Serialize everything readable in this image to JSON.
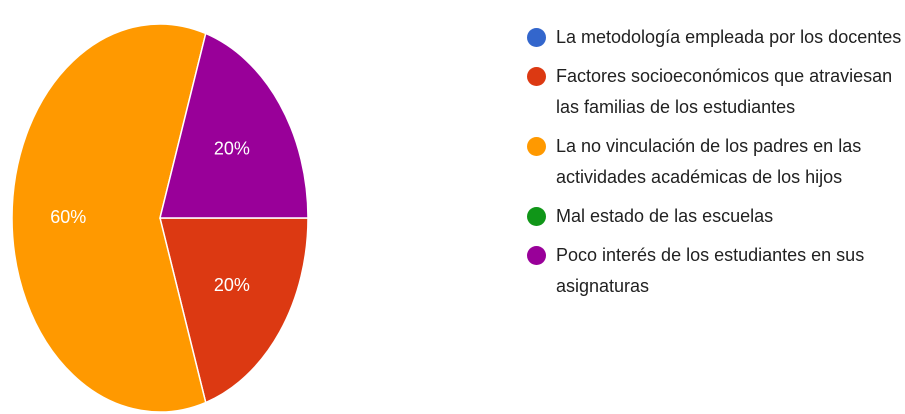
{
  "chart_data": {
    "type": "pie",
    "categories": [
      "La metodología empleada por los docentes",
      "Factores socioeconómicos que atraviesan las familias de los estudiantes",
      "La no vinculación de los padres en las actividades académicas de los hijos",
      "Mal estado de las escuelas",
      "Poco interés de los estudiantes en sus asignaturas"
    ],
    "values": [
      0,
      20,
      60,
      0,
      20
    ],
    "value_labels": [
      null,
      "20%",
      "60%",
      null,
      "20%"
    ],
    "colors": [
      "#3366cc",
      "#dc3912",
      "#ff9900",
      "#109618",
      "#990099"
    ]
  }
}
